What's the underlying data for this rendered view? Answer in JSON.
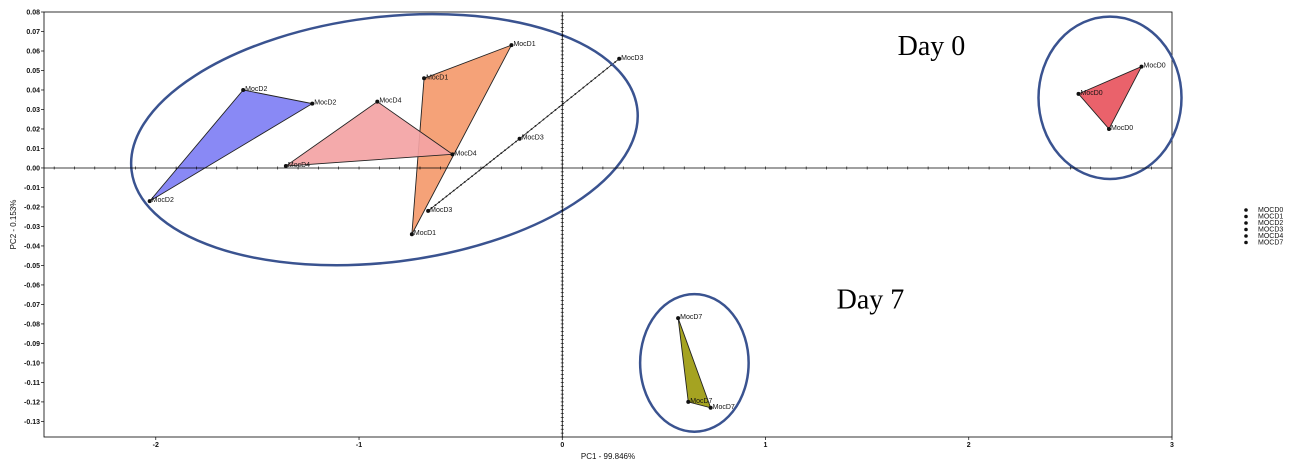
{
  "chart_data": {
    "type": "scatter",
    "xlabel": "PC1 - 99.846%",
    "ylabel": "PC2 - 0.153%",
    "xlim": [
      -2.55,
      3.0
    ],
    "ylim": [
      -0.138,
      0.08
    ],
    "x_ticks": [
      -2,
      -1,
      0,
      1,
      2,
      3
    ],
    "y_ticks": [
      0.08,
      0.07,
      0.06,
      0.05,
      0.04,
      0.03,
      0.02,
      0.01,
      0.0,
      -0.01,
      -0.02,
      -0.03,
      -0.04,
      -0.05,
      -0.06,
      -0.07,
      -0.08,
      -0.09,
      -0.1,
      -0.11,
      -0.12,
      -0.13
    ],
    "x_tick_labels": [
      "-2",
      "-1",
      "0",
      "1",
      "2",
      "3"
    ],
    "y_tick_labels": [
      "0.08",
      "0.07",
      "0.06",
      "0.05",
      "0.04",
      "0.03",
      "0.02",
      "0.01",
      "0.00",
      "-0.01",
      "-0.02",
      "-0.03",
      "-0.04",
      "-0.05",
      "-0.06",
      "-0.07",
      "-0.08",
      "-0.09",
      "-0.10",
      "-0.11",
      "-0.12",
      "-0.13"
    ],
    "grid": false,
    "legend_position": "right",
    "series": [
      {
        "name": "MOCD0",
        "fill": "#e8555e",
        "points": [
          {
            "x": 2.85,
            "y": 0.052,
            "label": "MocD0"
          },
          {
            "x": 2.54,
            "y": 0.038,
            "label": "MocD0"
          },
          {
            "x": 2.69,
            "y": 0.02,
            "label": "MocD0"
          }
        ]
      },
      {
        "name": "MOCD1",
        "fill": "#f49a6c",
        "points": [
          {
            "x": -0.25,
            "y": 0.063,
            "label": "MocD1"
          },
          {
            "x": -0.68,
            "y": 0.046,
            "label": "MocD1"
          },
          {
            "x": -0.74,
            "y": -0.034,
            "label": "MocD1"
          }
        ]
      },
      {
        "name": "MOCD2",
        "fill": "#7f7ff4",
        "points": [
          {
            "x": -1.57,
            "y": 0.04,
            "label": "MocD2"
          },
          {
            "x": -1.23,
            "y": 0.033,
            "label": "MocD2"
          },
          {
            "x": -2.03,
            "y": -0.017,
            "label": "MocD2"
          }
        ]
      },
      {
        "name": "MOCD3",
        "fill": "none",
        "points": [
          {
            "x": 0.28,
            "y": 0.056,
            "label": "MocD3"
          },
          {
            "x": -0.21,
            "y": 0.015,
            "label": "MocD3"
          },
          {
            "x": -0.66,
            "y": -0.022,
            "label": "MocD3"
          }
        ]
      },
      {
        "name": "MOCD4",
        "fill": "#f3a3a4",
        "points": [
          {
            "x": -0.91,
            "y": 0.034,
            "label": "MocD4"
          },
          {
            "x": -0.54,
            "y": 0.007,
            "label": "MocD4"
          },
          {
            "x": -1.36,
            "y": 0.001,
            "label": "MocD4"
          }
        ]
      },
      {
        "name": "MOCD7",
        "fill": "#9d9b0e",
        "points": [
          {
            "x": 0.57,
            "y": -0.077,
            "label": "MocD7"
          },
          {
            "x": 0.62,
            "y": -0.12,
            "label": "MocD7"
          },
          {
            "x": 0.73,
            "y": -0.123,
            "label": "MocD7"
          }
        ]
      }
    ],
    "annotations": [
      {
        "text": "Day 0",
        "x": 1.65,
        "y": 0.058
      },
      {
        "text": "Day 7",
        "x": 1.35,
        "y": -0.072
      }
    ],
    "ellipse_color": "#3a5390"
  }
}
